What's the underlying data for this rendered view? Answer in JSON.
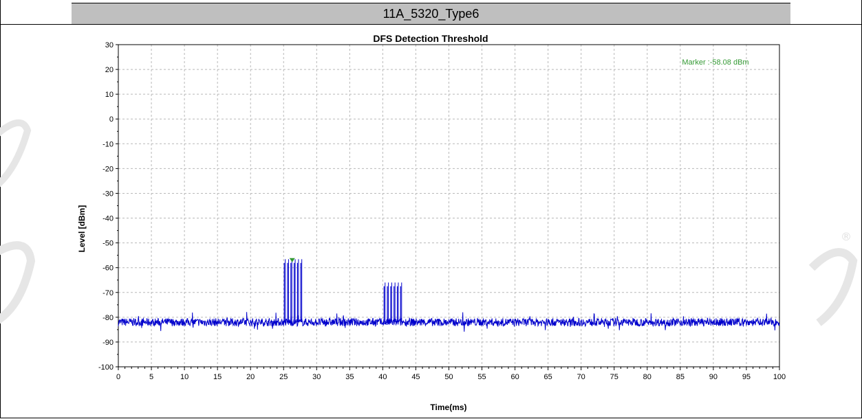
{
  "header": {
    "title": "11A_5320_Type6"
  },
  "chart_data": {
    "type": "line",
    "title": "DFS Detection Threshold",
    "xlabel": "Time(ms)",
    "ylabel": "Level [dBm]",
    "xlim": [
      0,
      100
    ],
    "ylim": [
      -100,
      30
    ],
    "xticks": [
      0,
      5,
      10,
      15,
      20,
      25,
      30,
      35,
      40,
      45,
      50,
      55,
      60,
      65,
      70,
      75,
      80,
      85,
      90,
      95,
      100
    ],
    "yticks": [
      30,
      20,
      10,
      0,
      -10,
      -20,
      -30,
      -40,
      -50,
      -60,
      -70,
      -80,
      -90,
      -100
    ],
    "grid": true,
    "noise_floor_dbm": -82,
    "noise_range_dbm": [
      -85,
      -79
    ],
    "series": [
      {
        "color": "#0000cc",
        "bursts": [
          {
            "times_ms": [
              25.1,
              25.6,
              26.1,
              26.6,
              27.1,
              27.6
            ],
            "peak_dbm": -58.08
          },
          {
            "times_ms": [
              40.2,
              40.7,
              41.2,
              41.7,
              42.2,
              42.7
            ],
            "peak_dbm": -67.5
          }
        ]
      }
    ],
    "marker": {
      "x": 26.3,
      "y": -58.08,
      "color": "#339933"
    },
    "annotation": {
      "text": "Marker :-58.08 dBm",
      "color": "#339933"
    }
  }
}
